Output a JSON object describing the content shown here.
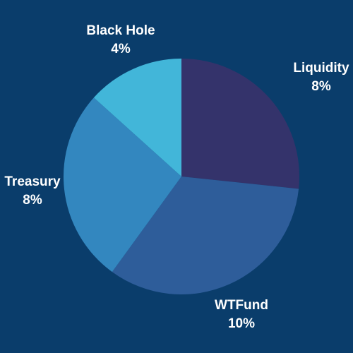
{
  "chart_data": {
    "type": "pie",
    "title": "",
    "slices": [
      {
        "label": "Liquidity",
        "percent_label": "8%",
        "value": 8,
        "color": "#34336b"
      },
      {
        "label": "WTFund",
        "percent_label": "10%",
        "value": 10,
        "color": "#2e5d9a"
      },
      {
        "label": "Treasury",
        "percent_label": "8%",
        "value": 8,
        "color": "#3387bf"
      },
      {
        "label": "Black Hole",
        "percent_label": "4%",
        "value": 4,
        "color": "#42b6d9"
      }
    ],
    "start_angle_deg": 0,
    "direction": "clockwise",
    "legend": "none",
    "background_color": "#0a3d6b"
  }
}
